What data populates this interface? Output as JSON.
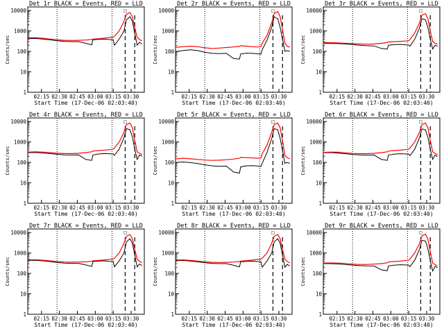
{
  "chart_data": {
    "type": "line",
    "layout": "3x3 grid",
    "yscale": "log",
    "ylim": [
      1,
      15000
    ],
    "yticks": [
      "1",
      "10",
      "100",
      "1000",
      "10000"
    ],
    "xticks": [
      "02:15",
      "02:30",
      "02:45",
      "03:00",
      "03:15",
      "03:30"
    ],
    "xtick_minutes": [
      15,
      30,
      45,
      60,
      75,
      90
    ],
    "xlim_minutes": [
      3.5,
      101
    ],
    "xlabel": "Start Time (17-Dec-06 02:03:40)",
    "ylabel": "Counts/sec",
    "legend_marker": "☐",
    "dotted_lines_at_minutes": [
      28,
      74
    ],
    "dashed_lines_at_minutes": [
      85,
      93
    ],
    "colors": {
      "events": "#000000",
      "lld": "#ff0000"
    },
    "panels": [
      {
        "title": "Det 1r BLACK = Events, RED = LLD",
        "x": [
          4,
          10,
          16,
          22,
          28,
          34,
          40,
          46,
          52,
          57,
          58,
          63,
          68,
          72,
          75,
          76,
          80,
          84,
          86,
          89,
          91,
          93,
          95,
          97,
          99
        ],
        "events": [
          420,
          430,
          400,
          370,
          330,
          310,
          300,
          300,
          250,
          210,
          370,
          390,
          400,
          380,
          370,
          200,
          400,
          1000,
          3500,
          5000,
          3000,
          800,
          200,
          280,
          230
        ],
        "lld": [
          460,
          470,
          440,
          400,
          370,
          350,
          345,
          350,
          360,
          380,
          400,
          420,
          450,
          480,
          500,
          550,
          1000,
          3000,
          6500,
          8000,
          5000,
          1500,
          500,
          380,
          330
        ]
      },
      {
        "title": "Det 2r BLACK = Events, RED = LLD",
        "x": [
          4,
          10,
          16,
          22,
          28,
          34,
          40,
          46,
          52,
          57,
          58,
          63,
          68,
          72,
          75,
          76,
          80,
          84,
          86,
          89,
          91,
          93,
          95,
          97,
          99
        ],
        "events": [
          100,
          110,
          120,
          110,
          90,
          80,
          78,
          80,
          45,
          42,
          75,
          82,
          80,
          76,
          74,
          120,
          350,
          1500,
          5000,
          4000,
          1500,
          400,
          100,
          110,
          100
        ],
        "lld": [
          160,
          170,
          180,
          170,
          150,
          140,
          145,
          155,
          165,
          175,
          190,
          180,
          170,
          165,
          170,
          250,
          600,
          2500,
          7000,
          9000,
          5000,
          1200,
          250,
          180,
          160
        ]
      },
      {
        "title": "Det 3r BLACK = Events, RED = LLD",
        "x": [
          4,
          10,
          16,
          22,
          28,
          34,
          40,
          46,
          52,
          57,
          58,
          63,
          68,
          72,
          75,
          76,
          80,
          84,
          86,
          89,
          91,
          93,
          95,
          97,
          99
        ],
        "events": [
          250,
          245,
          240,
          230,
          215,
          200,
          190,
          185,
          140,
          130,
          200,
          215,
          220,
          210,
          205,
          180,
          400,
          1400,
          4000,
          3500,
          1500,
          400,
          130,
          200,
          180
        ],
        "lld": [
          270,
          265,
          260,
          250,
          240,
          230,
          225,
          230,
          250,
          270,
          290,
          300,
          310,
          320,
          330,
          380,
          800,
          2500,
          6000,
          7000,
          4000,
          1000,
          300,
          250,
          230
        ]
      },
      {
        "title": "Det 4r BLACK = Events, RED = LLD",
        "x": [
          4,
          10,
          16,
          22,
          28,
          34,
          40,
          46,
          52,
          57,
          58,
          63,
          68,
          72,
          75,
          76,
          80,
          84,
          86,
          89,
          91,
          93,
          95,
          97,
          99
        ],
        "events": [
          300,
          305,
          290,
          270,
          250,
          235,
          230,
          232,
          140,
          125,
          230,
          260,
          270,
          265,
          260,
          220,
          450,
          1600,
          4500,
          4000,
          1800,
          450,
          140,
          230,
          200
        ],
        "lld": [
          320,
          330,
          320,
          300,
          280,
          270,
          270,
          280,
          300,
          330,
          360,
          380,
          400,
          420,
          440,
          500,
          1000,
          3000,
          7000,
          8500,
          5000,
          1200,
          330,
          280,
          240
        ]
      },
      {
        "title": "Det 5r BLACK = Events, RED = LLD",
        "x": [
          4,
          10,
          16,
          22,
          28,
          34,
          40,
          46,
          52,
          57,
          58,
          63,
          68,
          72,
          75,
          76,
          80,
          84,
          86,
          89,
          91,
          93,
          95,
          97,
          99
        ],
        "events": [
          100,
          105,
          98,
          88,
          76,
          68,
          64,
          66,
          34,
          30,
          60,
          68,
          70,
          66,
          64,
          90,
          300,
          1500,
          4500,
          4000,
          1500,
          400,
          90,
          100,
          90
        ],
        "lld": [
          150,
          160,
          150,
          140,
          130,
          125,
          128,
          135,
          145,
          160,
          175,
          170,
          165,
          160,
          165,
          260,
          700,
          3000,
          7000,
          8500,
          5000,
          1200,
          220,
          170,
          150
        ]
      },
      {
        "title": "Det 6r BLACK = Events, RED = LLD",
        "x": [
          4,
          10,
          16,
          22,
          28,
          34,
          40,
          46,
          52,
          57,
          58,
          63,
          68,
          72,
          75,
          76,
          80,
          84,
          86,
          89,
          91,
          93,
          95,
          97,
          99
        ],
        "events": [
          300,
          300,
          285,
          265,
          245,
          232,
          228,
          230,
          140,
          125,
          230,
          255,
          265,
          260,
          255,
          215,
          440,
          1600,
          4400,
          3900,
          1700,
          440,
          140,
          225,
          195
        ],
        "lld": [
          310,
          320,
          315,
          295,
          275,
          268,
          268,
          278,
          300,
          330,
          360,
          380,
          400,
          420,
          440,
          500,
          1000,
          3000,
          7000,
          8500,
          5000,
          1200,
          330,
          275,
          235
        ]
      },
      {
        "title": "Det 7r BLACK = Events, RED = LLD",
        "x": [
          4,
          10,
          16,
          22,
          28,
          34,
          40,
          46,
          52,
          57,
          58,
          63,
          68,
          72,
          75,
          76,
          80,
          84,
          86,
          89,
          91,
          93,
          95,
          97,
          99
        ],
        "events": [
          430,
          440,
          410,
          380,
          340,
          320,
          310,
          310,
          260,
          220,
          380,
          400,
          410,
          390,
          380,
          210,
          410,
          1000,
          3500,
          5000,
          3000,
          800,
          210,
          290,
          240
        ],
        "lld": [
          460,
          470,
          440,
          410,
          380,
          360,
          355,
          360,
          370,
          390,
          410,
          430,
          460,
          490,
          510,
          560,
          1000,
          3000,
          6500,
          8000,
          5000,
          1500,
          500,
          390,
          340
        ]
      },
      {
        "title": "Det 8r BLACK = Events, RED = LLD",
        "x": [
          4,
          10,
          16,
          22,
          28,
          34,
          40,
          46,
          52,
          57,
          58,
          63,
          68,
          72,
          75,
          76,
          80,
          84,
          86,
          89,
          91,
          93,
          95,
          97,
          99
        ],
        "events": [
          420,
          430,
          400,
          370,
          330,
          310,
          300,
          300,
          250,
          210,
          370,
          390,
          400,
          380,
          370,
          200,
          400,
          1000,
          3500,
          5000,
          3000,
          800,
          200,
          280,
          230
        ],
        "lld": [
          450,
          460,
          430,
          400,
          370,
          350,
          345,
          350,
          360,
          380,
          400,
          420,
          450,
          480,
          500,
          550,
          1000,
          3000,
          6500,
          8000,
          5000,
          1500,
          500,
          380,
          330
        ]
      },
      {
        "title": "Det 9r BLACK = Events, RED = LLD",
        "x": [
          4,
          10,
          16,
          22,
          28,
          34,
          40,
          46,
          52,
          57,
          58,
          63,
          68,
          72,
          75,
          76,
          80,
          84,
          86,
          89,
          91,
          93,
          95,
          97,
          99
        ],
        "events": [
          300,
          300,
          290,
          275,
          255,
          240,
          232,
          230,
          150,
          135,
          230,
          255,
          265,
          260,
          255,
          215,
          440,
          1500,
          4200,
          3800,
          1600,
          420,
          130,
          220,
          190
        ],
        "lld": [
          320,
          325,
          320,
          305,
          285,
          275,
          275,
          285,
          300,
          330,
          360,
          380,
          400,
          420,
          440,
          500,
          1000,
          2900,
          6800,
          8200,
          4800,
          1150,
          320,
          270,
          230
        ]
      }
    ]
  }
}
